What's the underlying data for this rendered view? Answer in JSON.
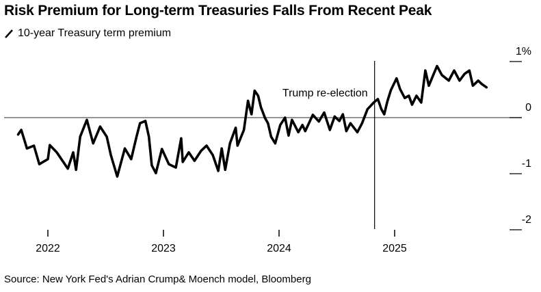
{
  "chart_data": {
    "type": "line",
    "title": "Risk Premium for Long-term Treasuries Falls From Recent Peak",
    "source": "Source: New York Fed's Adrian Crump& Moench model, Bloomberg",
    "xlabel": "",
    "ylabel": "",
    "ylim": [
      -2,
      1
    ],
    "yticks": [
      {
        "value": 1,
        "label": "1%"
      },
      {
        "value": 0,
        "label": "0"
      },
      {
        "value": -1,
        "label": "-1"
      },
      {
        "value": -2,
        "label": "-2"
      }
    ],
    "xticks": [
      {
        "value": "2022-01-01",
        "label": "2022"
      },
      {
        "value": "2023-01-01",
        "label": "2023"
      },
      {
        "value": "2024-01-01",
        "label": "2024"
      },
      {
        "value": "2025-01-01",
        "label": "2025"
      }
    ],
    "grid": false,
    "zero_line": true,
    "annotations": [
      {
        "date": "2024-11-05",
        "label": "Trump re-election",
        "type": "vertical-line"
      }
    ],
    "series": [
      {
        "name": "10-year Treasury term premium",
        "color": "#000000",
        "points": [
          [
            "2021-09-29",
            -0.3
          ],
          [
            "2021-10-09",
            -0.22
          ],
          [
            "2021-10-27",
            -0.55
          ],
          [
            "2021-11-18",
            -0.5
          ],
          [
            "2021-12-05",
            -0.83
          ],
          [
            "2022-01-01",
            -0.74
          ],
          [
            "2022-01-07",
            -0.49
          ],
          [
            "2022-01-29",
            -0.62
          ],
          [
            "2022-03-05",
            -0.91
          ],
          [
            "2022-03-22",
            -0.62
          ],
          [
            "2022-03-31",
            -0.93
          ],
          [
            "2022-04-13",
            -0.34
          ],
          [
            "2022-05-04",
            -0.04
          ],
          [
            "2022-05-24",
            -0.46
          ],
          [
            "2022-06-15",
            -0.16
          ],
          [
            "2022-07-06",
            -0.34
          ],
          [
            "2022-07-19",
            -0.67
          ],
          [
            "2022-08-08",
            -1.05
          ],
          [
            "2022-09-01",
            -0.55
          ],
          [
            "2022-09-21",
            -0.74
          ],
          [
            "2022-10-08",
            -0.34
          ],
          [
            "2022-10-19",
            -0.1
          ],
          [
            "2022-11-05",
            -0.06
          ],
          [
            "2022-11-16",
            -0.34
          ],
          [
            "2022-11-25",
            -0.85
          ],
          [
            "2022-12-08",
            -0.99
          ],
          [
            "2022-12-27",
            -0.56
          ],
          [
            "2023-01-18",
            -0.83
          ],
          [
            "2023-02-09",
            -0.89
          ],
          [
            "2023-02-26",
            -0.37
          ],
          [
            "2023-03-03",
            -0.79
          ],
          [
            "2023-03-22",
            -0.62
          ],
          [
            "2023-04-09",
            -0.77
          ],
          [
            "2023-04-30",
            -0.59
          ],
          [
            "2023-05-17",
            -0.5
          ],
          [
            "2023-06-06",
            -0.67
          ],
          [
            "2023-06-23",
            -0.95
          ],
          [
            "2023-07-04",
            -0.55
          ],
          [
            "2023-07-15",
            -0.93
          ],
          [
            "2023-07-30",
            -0.46
          ],
          [
            "2023-08-17",
            -0.18
          ],
          [
            "2023-08-23",
            -0.5
          ],
          [
            "2023-09-12",
            -0.22
          ],
          [
            "2023-09-25",
            0.3
          ],
          [
            "2023-10-06",
            0.06
          ],
          [
            "2023-10-16",
            0.48
          ],
          [
            "2023-10-27",
            0.39
          ],
          [
            "2023-11-05",
            0.18
          ],
          [
            "2023-11-18",
            -0.01
          ],
          [
            "2023-11-27",
            -0.1
          ],
          [
            "2023-12-07",
            -0.34
          ],
          [
            "2023-12-20",
            -0.46
          ],
          [
            "2024-01-05",
            -0.13
          ],
          [
            "2024-01-20",
            0.0
          ],
          [
            "2024-01-31",
            -0.32
          ],
          [
            "2024-02-11",
            -0.04
          ],
          [
            "2024-03-02",
            -0.26
          ],
          [
            "2024-03-15",
            -0.13
          ],
          [
            "2024-03-24",
            -0.24
          ],
          [
            "2024-04-17",
            0.05
          ],
          [
            "2024-05-06",
            -0.07
          ],
          [
            "2024-05-23",
            0.09
          ],
          [
            "2024-06-10",
            -0.22
          ],
          [
            "2024-06-25",
            0.02
          ],
          [
            "2024-07-10",
            -0.06
          ],
          [
            "2024-07-21",
            0.06
          ],
          [
            "2024-08-01",
            -0.24
          ],
          [
            "2024-08-14",
            -0.1
          ],
          [
            "2024-09-05",
            -0.26
          ],
          [
            "2024-09-20",
            -0.1
          ],
          [
            "2024-10-07",
            0.15
          ],
          [
            "2024-10-27",
            0.27
          ],
          [
            "2024-11-09",
            0.33
          ],
          [
            "2024-11-20",
            0.15
          ],
          [
            "2024-11-29",
            0.06
          ],
          [
            "2024-12-09",
            0.29
          ],
          [
            "2024-12-20",
            0.49
          ],
          [
            "2025-01-07",
            0.7
          ],
          [
            "2025-01-18",
            0.51
          ],
          [
            "2025-02-02",
            0.35
          ],
          [
            "2025-02-15",
            0.39
          ],
          [
            "2025-02-25",
            0.23
          ],
          [
            "2025-03-11",
            0.39
          ],
          [
            "2025-03-26",
            0.27
          ],
          [
            "2025-04-08",
            0.84
          ],
          [
            "2025-04-19",
            0.57
          ],
          [
            "2025-04-30",
            0.72
          ],
          [
            "2025-05-15",
            0.92
          ],
          [
            "2025-05-30",
            0.76
          ],
          [
            "2025-06-21",
            0.66
          ],
          [
            "2025-07-08",
            0.84
          ],
          [
            "2025-07-25",
            0.66
          ],
          [
            "2025-08-10",
            0.78
          ],
          [
            "2025-08-25",
            0.84
          ],
          [
            "2025-09-05",
            0.57
          ],
          [
            "2025-09-22",
            0.66
          ],
          [
            "2025-10-03",
            0.6
          ],
          [
            "2025-10-18",
            0.54
          ]
        ]
      }
    ]
  }
}
